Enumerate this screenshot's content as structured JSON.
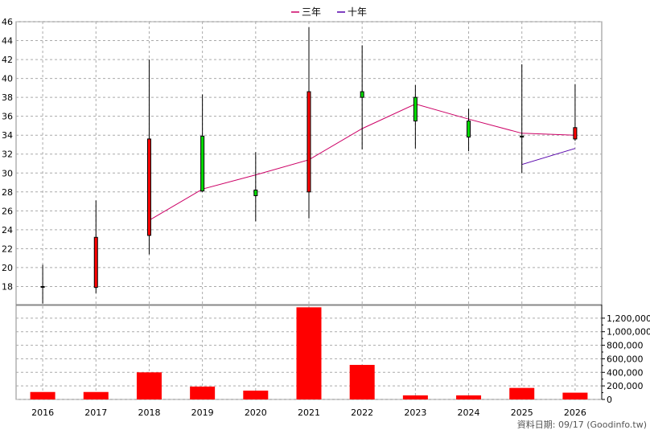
{
  "chart_data": {
    "type": "candlestick",
    "categories": [
      "2016",
      "2017",
      "2018",
      "2019",
      "2020",
      "2021",
      "2022",
      "2023",
      "2024",
      "2025",
      "2026"
    ],
    "legend": [
      {
        "name": "三年",
        "color": "#cc0066"
      },
      {
        "name": "十年",
        "color": "#5500aa"
      }
    ],
    "price": {
      "ylim": [
        16,
        46
      ],
      "ticks": [
        18,
        20,
        22,
        24,
        26,
        28,
        30,
        32,
        34,
        36,
        38,
        40,
        42,
        44,
        46
      ],
      "candles": [
        {
          "open": 18.0,
          "close": 18.0,
          "high": 20.3,
          "low": 16.2
        },
        {
          "open": 17.9,
          "close": 23.2,
          "high": 27.1,
          "low": 17.3
        },
        {
          "open": 23.4,
          "close": 33.6,
          "high": 42.0,
          "low": 21.4
        },
        {
          "open": 33.9,
          "close": 28.1,
          "high": 38.3,
          "low": 28.0
        },
        {
          "open": 28.2,
          "close": 27.6,
          "high": 32.2,
          "low": 24.9
        },
        {
          "open": 28.0,
          "close": 38.6,
          "high": 45.4,
          "low": 25.2
        },
        {
          "open": 38.6,
          "close": 38.0,
          "high": 43.5,
          "low": 32.5
        },
        {
          "open": 38.0,
          "close": 35.5,
          "high": 39.3,
          "low": 32.6
        },
        {
          "open": 35.5,
          "close": 33.8,
          "high": 36.8,
          "low": 32.3
        },
        {
          "open": 33.9,
          "close": 33.8,
          "high": 41.5,
          "low": 30.0
        },
        {
          "open": 33.6,
          "close": 34.8,
          "high": 39.4,
          "low": 33.4
        }
      ],
      "series": [
        {
          "name": "三年",
          "values": [
            null,
            null,
            25.0,
            28.3,
            29.8,
            31.4,
            34.7,
            37.3,
            35.7,
            34.2,
            34.0
          ]
        },
        {
          "name": "十年",
          "values": [
            null,
            null,
            null,
            null,
            null,
            null,
            null,
            null,
            null,
            30.9,
            32.6
          ]
        }
      ]
    },
    "volume": {
      "ylim": [
        0,
        1400000
      ],
      "ticks": [
        0,
        200000,
        400000,
        600000,
        800000,
        1000000,
        1200000
      ],
      "tick_labels": [
        "0",
        "200,000",
        "400,000",
        "600,000",
        "800,000",
        "1,000,000",
        "1,200,000"
      ],
      "values": [
        110000,
        110000,
        400000,
        190000,
        130000,
        1360000,
        510000,
        60000,
        60000,
        170000,
        100000
      ]
    }
  },
  "footer": "資料日期: 09/17  (Goodinfo.tw)",
  "colors": {
    "up": "#ff0000",
    "down": "#00dd00",
    "volume": "#ff0000",
    "grid": "#aaaaaa"
  }
}
